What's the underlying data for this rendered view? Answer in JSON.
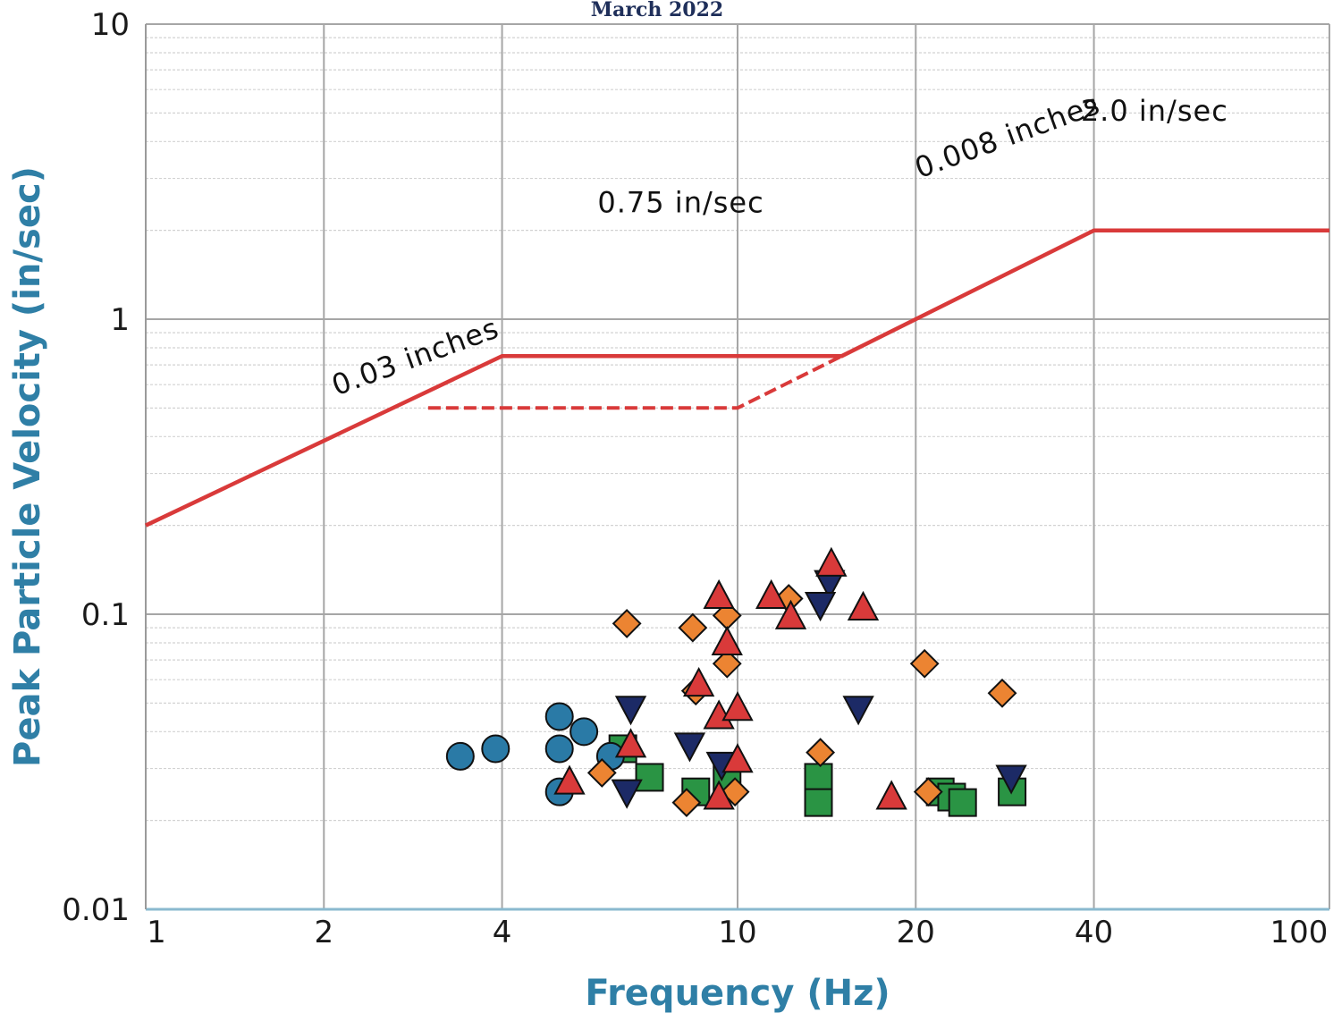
{
  "chart_data": {
    "type": "scatter",
    "title": "March 2022",
    "xlabel": "Frequency (Hz)",
    "ylabel": "Peak Particle Velocity (in/sec)",
    "x_scale": "log",
    "y_scale": "log",
    "xlim": [
      1,
      100
    ],
    "ylim": [
      0.01,
      10
    ],
    "x_ticks": [
      "1",
      "2",
      "4",
      "10",
      "20",
      "40",
      "100"
    ],
    "y_ticks": [
      "10",
      "1",
      "0.1",
      "0.01"
    ],
    "grid": true,
    "colors": {
      "limit_line": "#d93a3a",
      "circle": "#2a7aa6",
      "triangle_up": "#d93a3a",
      "triangle_down": "#1c2a66",
      "diamond": "#ec8432",
      "square": "#2a9444"
    },
    "limit_curve": {
      "solid": [
        [
          1,
          0.2
        ],
        [
          4,
          0.75
        ],
        [
          15,
          0.75
        ],
        [
          40,
          2.0
        ],
        [
          100,
          2.0
        ]
      ],
      "dashed": [
        [
          3,
          0.5
        ],
        [
          10,
          0.5
        ],
        [
          15,
          0.75
        ]
      ]
    },
    "annotations": [
      {
        "text": "0.03 inches",
        "x": 2.1,
        "y": 0.55,
        "angle": -20
      },
      {
        "text": "0.75 in/sec",
        "x": 5.8,
        "y": 2.3,
        "angle": 0
      },
      {
        "text": "0.008 inches",
        "x": 20.3,
        "y": 3.0,
        "angle": -20
      },
      {
        "text": "2.0 in/sec",
        "x": 38,
        "y": 4.7,
        "angle": 0
      }
    ],
    "series": [
      {
        "marker": "circle",
        "points": [
          [
            3.4,
            0.033
          ],
          [
            3.9,
            0.035
          ],
          [
            5.0,
            0.045
          ],
          [
            5.5,
            0.04
          ],
          [
            5.0,
            0.035
          ],
          [
            6.1,
            0.033
          ],
          [
            5.0,
            0.025
          ]
        ]
      },
      {
        "marker": "triangle_up",
        "points": [
          [
            9.3,
            0.115
          ],
          [
            11.4,
            0.115
          ],
          [
            12.3,
            0.098
          ],
          [
            14.4,
            0.148
          ],
          [
            16.3,
            0.105
          ],
          [
            9.6,
            0.08
          ],
          [
            8.6,
            0.058
          ],
          [
            9.3,
            0.045
          ],
          [
            10.0,
            0.048
          ],
          [
            6.6,
            0.036
          ],
          [
            10.0,
            0.032
          ],
          [
            5.2,
            0.027
          ],
          [
            9.3,
            0.024
          ],
          [
            18.2,
            0.024
          ]
        ]
      },
      {
        "marker": "triangle_down",
        "points": [
          [
            6.6,
            0.048
          ],
          [
            8.3,
            0.036
          ],
          [
            9.4,
            0.031
          ],
          [
            6.5,
            0.025
          ],
          [
            14.3,
            0.128
          ],
          [
            13.8,
            0.108
          ],
          [
            16.0,
            0.048
          ],
          [
            29.0,
            0.028
          ]
        ]
      },
      {
        "marker": "diamond",
        "points": [
          [
            6.5,
            0.093
          ],
          [
            8.4,
            0.09
          ],
          [
            9.6,
            0.099
          ],
          [
            12.2,
            0.113
          ],
          [
            9.6,
            0.068
          ],
          [
            8.5,
            0.055
          ],
          [
            20.7,
            0.068
          ],
          [
            28.0,
            0.054
          ],
          [
            5.9,
            0.029
          ],
          [
            13.8,
            0.034
          ],
          [
            8.2,
            0.023
          ],
          [
            9.9,
            0.025
          ],
          [
            21.0,
            0.025
          ]
        ]
      },
      {
        "marker": "square",
        "points": [
          [
            6.4,
            0.035
          ],
          [
            7.1,
            0.028
          ],
          [
            8.5,
            0.025
          ],
          [
            9.6,
            0.028
          ],
          [
            13.7,
            0.028
          ],
          [
            13.7,
            0.023
          ],
          [
            22.0,
            0.025
          ],
          [
            23.0,
            0.024
          ],
          [
            24.0,
            0.023
          ],
          [
            29.1,
            0.025
          ]
        ]
      }
    ]
  }
}
